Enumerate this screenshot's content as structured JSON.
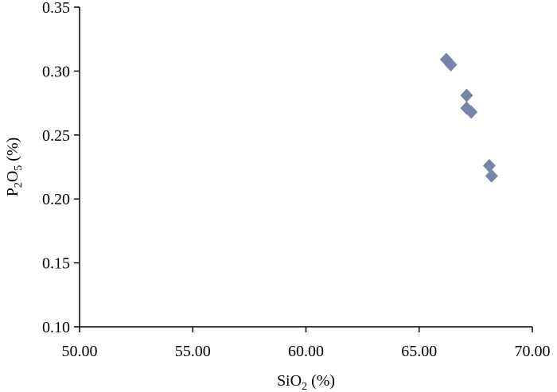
{
  "chart_data": {
    "type": "scatter",
    "title": "",
    "xlabel": {
      "main": "SiO",
      "sub": "2",
      "suffix": " (%)"
    },
    "ylabel": {
      "parts": [
        {
          "text": "P",
          "sub": false
        },
        {
          "text": "2",
          "sub": true
        },
        {
          "text": "O",
          "sub": false
        },
        {
          "text": "5",
          "sub": true
        },
        {
          "text": " (%)",
          "sub": false
        }
      ]
    },
    "xlim": [
      50,
      70
    ],
    "ylim": [
      0.1,
      0.35
    ],
    "x_ticks": [
      "50.00",
      "55.00",
      "60.00",
      "65.00",
      "70.00"
    ],
    "y_ticks": [
      "0.10",
      "0.15",
      "0.20",
      "0.25",
      "0.30",
      "0.35"
    ],
    "grid": false,
    "marker": "diamond",
    "marker_color": "#7584a8",
    "series": [
      {
        "points": [
          {
            "x": 66.2,
            "y": 0.309
          },
          {
            "x": 66.4,
            "y": 0.305
          },
          {
            "x": 67.1,
            "y": 0.281
          },
          {
            "x": 67.1,
            "y": 0.271
          },
          {
            "x": 67.3,
            "y": 0.268
          },
          {
            "x": 68.1,
            "y": 0.226
          },
          {
            "x": 68.2,
            "y": 0.218
          }
        ]
      }
    ]
  }
}
